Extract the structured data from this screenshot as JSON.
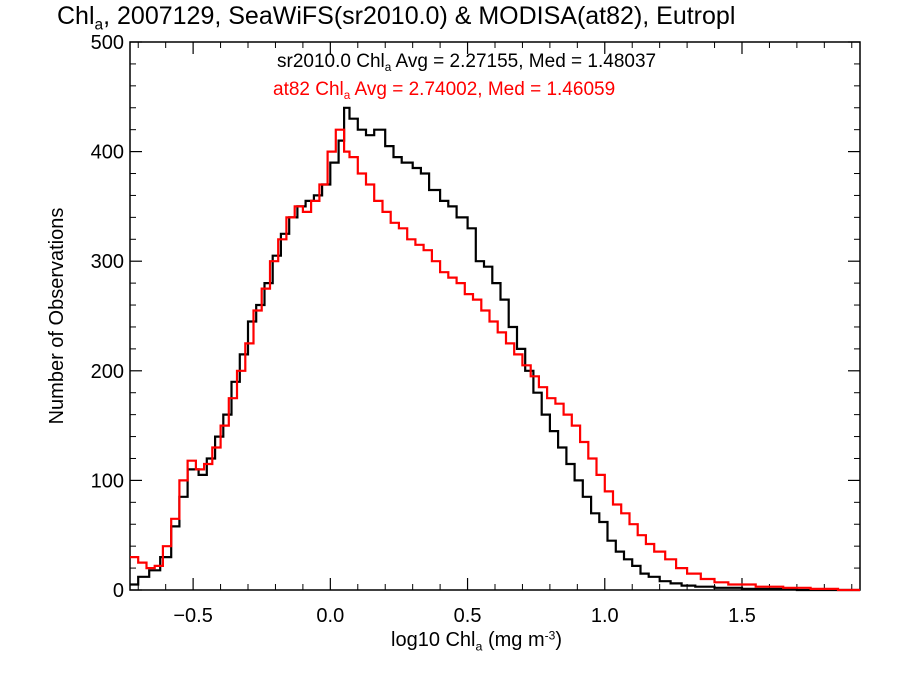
{
  "title": {
    "pre": "Chl",
    "sub": "a",
    "post": ", 2007129, SeaWiFS(sr2010.0) & MODISA(at82), Eutropl"
  },
  "annotations": {
    "black": {
      "pre": "sr2010.0 Chl",
      "sub": "a",
      "post": " Avg = 2.27155, Med = 1.48037"
    },
    "red": {
      "pre": "at82 Chl",
      "sub": "a",
      "post": " Avg = 2.74002, Med = 1.46059"
    }
  },
  "axes": {
    "xlabel": {
      "pre": "log10 Chl",
      "sub": "a",
      "mid": " (mg m",
      "sup": "-3",
      "post": ")"
    },
    "ylabel": "Number of Observations"
  },
  "colors": {
    "series1": "#000000",
    "series2": "#ff0000",
    "axis": "#000000"
  },
  "chart_data": {
    "type": "line",
    "subtype": "step-histogram",
    "xlim": [
      -0.73,
      1.93
    ],
    "ylim": [
      0,
      500
    ],
    "xticks": [
      -0.5,
      0.0,
      0.5,
      1.0,
      1.5
    ],
    "xtick_labels": [
      "−0.5",
      "0.0",
      "0.5",
      "1.0",
      "1.5"
    ],
    "yticks": [
      0,
      100,
      200,
      300,
      400,
      500
    ],
    "ytick_labels": [
      "0",
      "100",
      "200",
      "300",
      "400",
      "500"
    ],
    "grid": false,
    "series": [
      {
        "name": "sr2010.0",
        "color": "#000000",
        "points": [
          [
            -0.73,
            5
          ],
          [
            -0.7,
            12
          ],
          [
            -0.66,
            18
          ],
          [
            -0.62,
            30
          ],
          [
            -0.58,
            58
          ],
          [
            -0.55,
            85
          ],
          [
            -0.52,
            110
          ],
          [
            -0.48,
            105
          ],
          [
            -0.45,
            120
          ],
          [
            -0.42,
            140
          ],
          [
            -0.39,
            160
          ],
          [
            -0.36,
            190
          ],
          [
            -0.33,
            215
          ],
          [
            -0.3,
            245
          ],
          [
            -0.27,
            260
          ],
          [
            -0.24,
            280
          ],
          [
            -0.21,
            305
          ],
          [
            -0.18,
            325
          ],
          [
            -0.15,
            340
          ],
          [
            -0.12,
            350
          ],
          [
            -0.09,
            355
          ],
          [
            -0.06,
            360
          ],
          [
            -0.03,
            370
          ],
          [
            0.0,
            390
          ],
          [
            0.03,
            410
          ],
          [
            0.05,
            440
          ],
          [
            0.07,
            430
          ],
          [
            0.1,
            420
          ],
          [
            0.13,
            415
          ],
          [
            0.16,
            420
          ],
          [
            0.2,
            405
          ],
          [
            0.23,
            395
          ],
          [
            0.26,
            390
          ],
          [
            0.3,
            385
          ],
          [
            0.33,
            380
          ],
          [
            0.36,
            365
          ],
          [
            0.4,
            355
          ],
          [
            0.43,
            350
          ],
          [
            0.46,
            340
          ],
          [
            0.5,
            330
          ],
          [
            0.53,
            300
          ],
          [
            0.56,
            295
          ],
          [
            0.59,
            280
          ],
          [
            0.62,
            265
          ],
          [
            0.65,
            240
          ],
          [
            0.68,
            220
          ],
          [
            0.71,
            200
          ],
          [
            0.74,
            180
          ],
          [
            0.77,
            160
          ],
          [
            0.8,
            145
          ],
          [
            0.83,
            130
          ],
          [
            0.86,
            115
          ],
          [
            0.89,
            100
          ],
          [
            0.92,
            85
          ],
          [
            0.95,
            70
          ],
          [
            0.98,
            62
          ],
          [
            1.01,
            45
          ],
          [
            1.04,
            35
          ],
          [
            1.07,
            28
          ],
          [
            1.1,
            22
          ],
          [
            1.13,
            15
          ],
          [
            1.16,
            12
          ],
          [
            1.2,
            8
          ],
          [
            1.24,
            6
          ],
          [
            1.28,
            4
          ],
          [
            1.33,
            3
          ],
          [
            1.4,
            2
          ],
          [
            1.5,
            1
          ],
          [
            1.6,
            1
          ],
          [
            1.7,
            0
          ],
          [
            1.93,
            0
          ]
        ]
      },
      {
        "name": "at82",
        "color": "#ff0000",
        "points": [
          [
            -0.73,
            30
          ],
          [
            -0.7,
            25
          ],
          [
            -0.67,
            20
          ],
          [
            -0.64,
            22
          ],
          [
            -0.61,
            40
          ],
          [
            -0.58,
            65
          ],
          [
            -0.55,
            100
          ],
          [
            -0.52,
            118
          ],
          [
            -0.49,
            110
          ],
          [
            -0.46,
            115
          ],
          [
            -0.43,
            130
          ],
          [
            -0.4,
            150
          ],
          [
            -0.37,
            175
          ],
          [
            -0.34,
            200
          ],
          [
            -0.31,
            225
          ],
          [
            -0.28,
            255
          ],
          [
            -0.25,
            275
          ],
          [
            -0.22,
            300
          ],
          [
            -0.19,
            320
          ],
          [
            -0.16,
            340
          ],
          [
            -0.13,
            350
          ],
          [
            -0.1,
            345
          ],
          [
            -0.07,
            355
          ],
          [
            -0.04,
            370
          ],
          [
            -0.01,
            400
          ],
          [
            0.02,
            420
          ],
          [
            0.05,
            400
          ],
          [
            0.07,
            395
          ],
          [
            0.1,
            380
          ],
          [
            0.13,
            370
          ],
          [
            0.16,
            355
          ],
          [
            0.19,
            345
          ],
          [
            0.22,
            335
          ],
          [
            0.25,
            330
          ],
          [
            0.28,
            320
          ],
          [
            0.31,
            315
          ],
          [
            0.34,
            310
          ],
          [
            0.37,
            300
          ],
          [
            0.4,
            290
          ],
          [
            0.43,
            285
          ],
          [
            0.46,
            280
          ],
          [
            0.49,
            270
          ],
          [
            0.52,
            265
          ],
          [
            0.55,
            255
          ],
          [
            0.58,
            245
          ],
          [
            0.61,
            235
          ],
          [
            0.64,
            225
          ],
          [
            0.67,
            215
          ],
          [
            0.7,
            205
          ],
          [
            0.73,
            195
          ],
          [
            0.76,
            185
          ],
          [
            0.79,
            175
          ],
          [
            0.82,
            170
          ],
          [
            0.85,
            160
          ],
          [
            0.88,
            150
          ],
          [
            0.91,
            135
          ],
          [
            0.94,
            120
          ],
          [
            0.97,
            105
          ],
          [
            1.0,
            90
          ],
          [
            1.03,
            78
          ],
          [
            1.06,
            70
          ],
          [
            1.09,
            60
          ],
          [
            1.12,
            50
          ],
          [
            1.15,
            42
          ],
          [
            1.18,
            35
          ],
          [
            1.22,
            28
          ],
          [
            1.26,
            20
          ],
          [
            1.3,
            15
          ],
          [
            1.35,
            10
          ],
          [
            1.4,
            7
          ],
          [
            1.45,
            5
          ],
          [
            1.55,
            3
          ],
          [
            1.65,
            2
          ],
          [
            1.75,
            1
          ],
          [
            1.85,
            0
          ],
          [
            1.93,
            0
          ]
        ]
      }
    ]
  }
}
